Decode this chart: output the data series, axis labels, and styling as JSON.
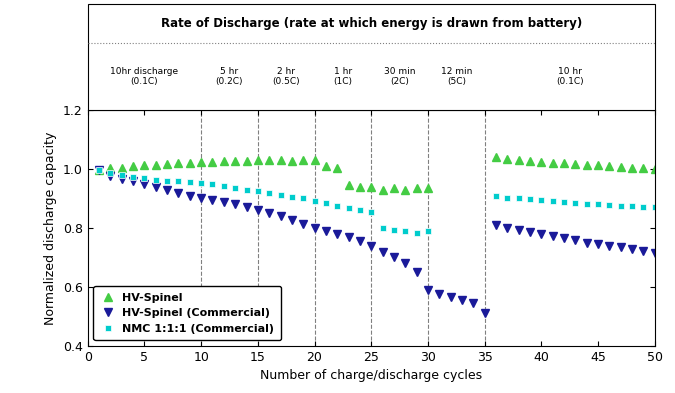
{
  "title": "Rate of Discharge (rate at which energy is drawn from battery)",
  "xlabel": "Number of charge/discharge cycles",
  "ylabel": "Normalized discharge capacity",
  "xlim": [
    0,
    50
  ],
  "ylim": [
    0.4,
    1.2
  ],
  "yticks": [
    0.4,
    0.6,
    0.8,
    1.0,
    1.2
  ],
  "xticks": [
    0,
    5,
    10,
    15,
    20,
    25,
    30,
    35,
    40,
    45,
    50
  ],
  "vlines": [
    10,
    15,
    20,
    25,
    30,
    35
  ],
  "rate_label_data": [
    [
      5.0,
      "10hr discharge\n(0.1C)"
    ],
    [
      12.5,
      "5 hr\n(0.2C)"
    ],
    [
      17.5,
      "2 hr\n(0.5C)"
    ],
    [
      22.5,
      "1 hr\n(1C)"
    ],
    [
      27.5,
      "30 min\n(2C)"
    ],
    [
      32.5,
      "12 min\n(5C)"
    ],
    [
      42.5,
      "10 hr\n(0.1C)"
    ]
  ],
  "hv_spinel_x": [
    1,
    2,
    3,
    4,
    5,
    6,
    7,
    8,
    9,
    10,
    11,
    12,
    13,
    14,
    15,
    16,
    17,
    18,
    19,
    20,
    21,
    22,
    23,
    24,
    25,
    26,
    27,
    28,
    29,
    30,
    36,
    37,
    38,
    39,
    40,
    41,
    42,
    43,
    44,
    45,
    46,
    47,
    48,
    49,
    50
  ],
  "hv_spinel_y": [
    0.998,
    1.002,
    1.005,
    1.01,
    1.015,
    1.015,
    1.018,
    1.02,
    1.022,
    1.025,
    1.025,
    1.027,
    1.028,
    1.028,
    1.03,
    1.03,
    1.03,
    1.028,
    1.03,
    1.03,
    1.01,
    1.005,
    0.945,
    0.94,
    0.94,
    0.93,
    0.935,
    0.93,
    0.935,
    0.935,
    1.04,
    1.035,
    1.03,
    1.028,
    1.025,
    1.022,
    1.02,
    1.018,
    1.015,
    1.012,
    1.01,
    1.008,
    1.005,
    1.002,
    1.0
  ],
  "hv_spinel_comm_x": [
    1,
    2,
    3,
    4,
    5,
    6,
    7,
    8,
    9,
    10,
    11,
    12,
    13,
    14,
    15,
    16,
    17,
    18,
    19,
    20,
    21,
    22,
    23,
    24,
    25,
    26,
    27,
    28,
    29,
    30,
    31,
    32,
    33,
    34,
    35,
    36,
    37,
    38,
    39,
    40,
    41,
    42,
    43,
    44,
    45,
    46,
    47,
    48,
    49,
    50
  ],
  "hv_spinel_comm_y": [
    0.995,
    0.975,
    0.965,
    0.96,
    0.95,
    0.94,
    0.93,
    0.918,
    0.91,
    0.9,
    0.895,
    0.888,
    0.88,
    0.872,
    0.862,
    0.852,
    0.84,
    0.828,
    0.815,
    0.8,
    0.79,
    0.78,
    0.77,
    0.755,
    0.74,
    0.72,
    0.7,
    0.68,
    0.65,
    0.59,
    0.575,
    0.565,
    0.555,
    0.545,
    0.51,
    0.81,
    0.8,
    0.792,
    0.785,
    0.778,
    0.772,
    0.765,
    0.758,
    0.75,
    0.745,
    0.74,
    0.735,
    0.728,
    0.722,
    0.715
  ],
  "nmc_x": [
    1,
    2,
    3,
    4,
    5,
    6,
    7,
    8,
    9,
    10,
    11,
    12,
    13,
    14,
    15,
    16,
    17,
    18,
    19,
    20,
    21,
    22,
    23,
    24,
    25,
    26,
    27,
    28,
    29,
    30,
    36,
    37,
    38,
    39,
    40,
    41,
    42,
    43,
    44,
    45,
    46,
    47,
    48,
    49,
    50
  ],
  "nmc_y": [
    0.995,
    0.985,
    0.978,
    0.972,
    0.968,
    0.963,
    0.96,
    0.958,
    0.955,
    0.952,
    0.948,
    0.942,
    0.936,
    0.93,
    0.925,
    0.918,
    0.912,
    0.906,
    0.9,
    0.893,
    0.885,
    0.876,
    0.868,
    0.86,
    0.855,
    0.8,
    0.792,
    0.788,
    0.782,
    0.79,
    0.908,
    0.903,
    0.9,
    0.897,
    0.894,
    0.891,
    0.888,
    0.885,
    0.882,
    0.88,
    0.878,
    0.876,
    0.874,
    0.872,
    0.87
  ],
  "hv_spinel_color": "#44cc44",
  "hv_spinel_comm_color": "#1a1a99",
  "nmc_color": "#00cccc",
  "bg_color": "#ffffff",
  "legend_labels": [
    "HV-Spinel",
    "HV-Spinel (Commercial)",
    "NMC 1:1:1 (Commercial)"
  ]
}
